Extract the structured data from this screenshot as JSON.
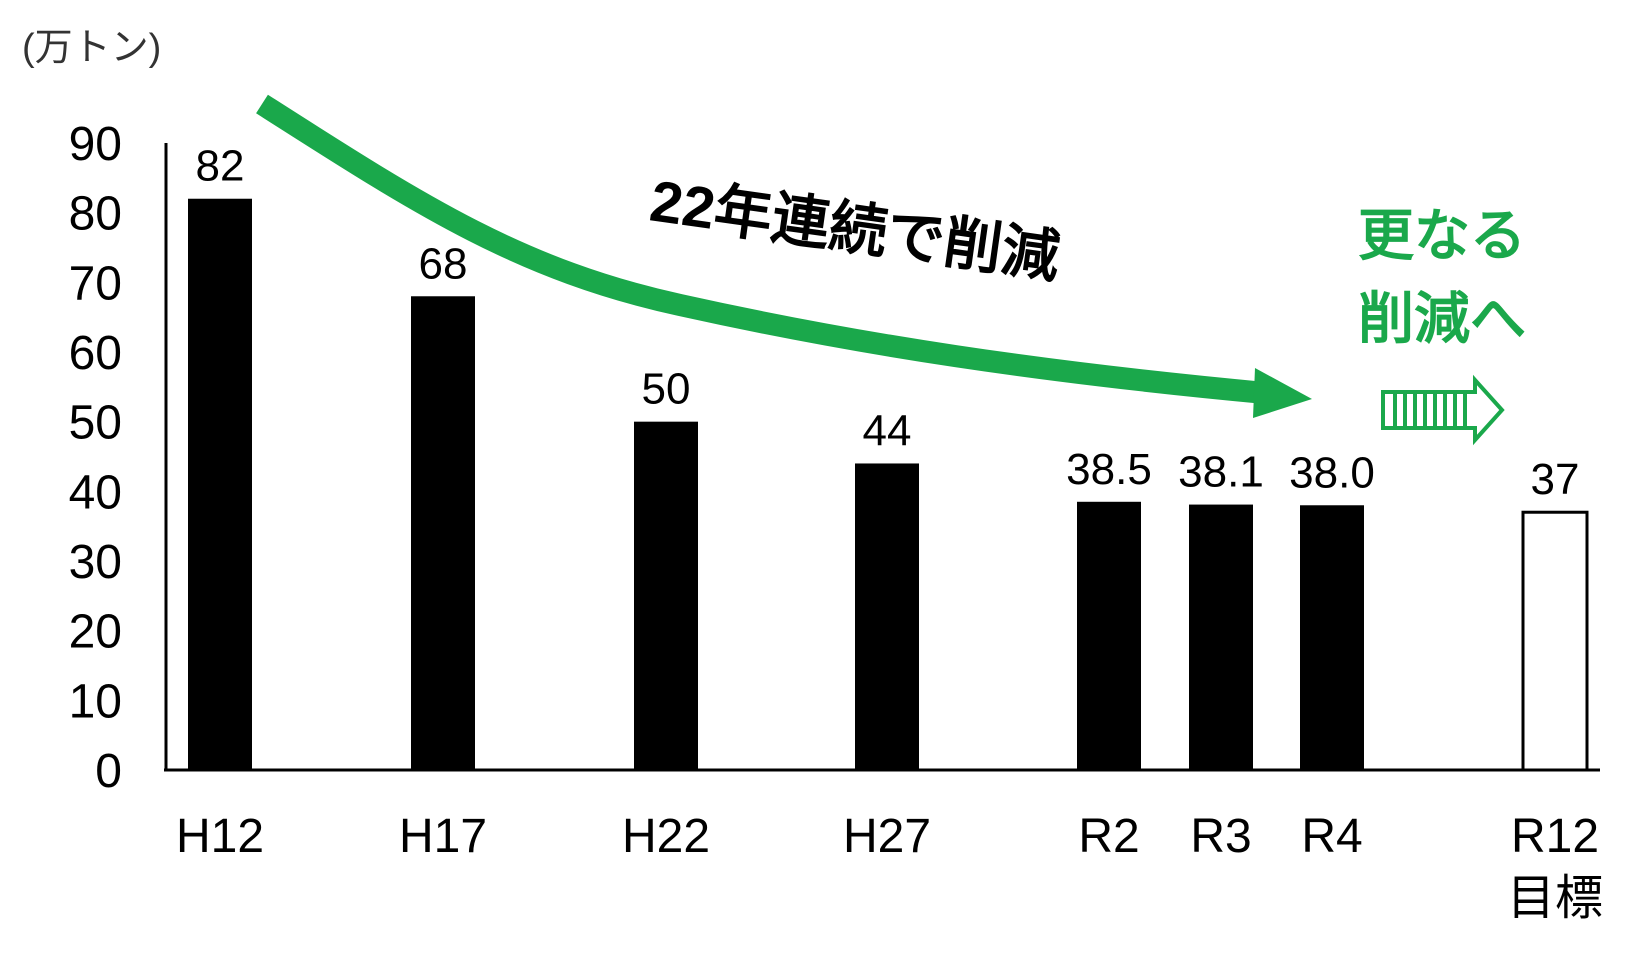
{
  "chart_data": {
    "type": "bar",
    "unit_label": "(万トン)",
    "categories": [
      "H12",
      "H17",
      "H22",
      "H27",
      "R2",
      "R3",
      "R4",
      "R12\n目標"
    ],
    "values": [
      82,
      68,
      50,
      44,
      38.5,
      38.1,
      38.0,
      37
    ],
    "value_labels": [
      "82",
      "68",
      "50",
      "44",
      "38.5",
      "38.1",
      "38.0",
      "37"
    ],
    "target_flags": [
      false,
      false,
      false,
      false,
      false,
      false,
      false,
      true
    ],
    "y_ticks": [
      0,
      10,
      20,
      30,
      40,
      50,
      60,
      70,
      80,
      90
    ],
    "ylim": [
      0,
      90
    ],
    "grid": false,
    "annotations": {
      "trend_text": "22年連続で削減",
      "future_text_line1": "更なる",
      "future_text_line2": "削減へ"
    },
    "colors": {
      "bar": "#000000",
      "target_bar_fill": "#ffffff",
      "accent_green": "#1aa84b"
    }
  }
}
